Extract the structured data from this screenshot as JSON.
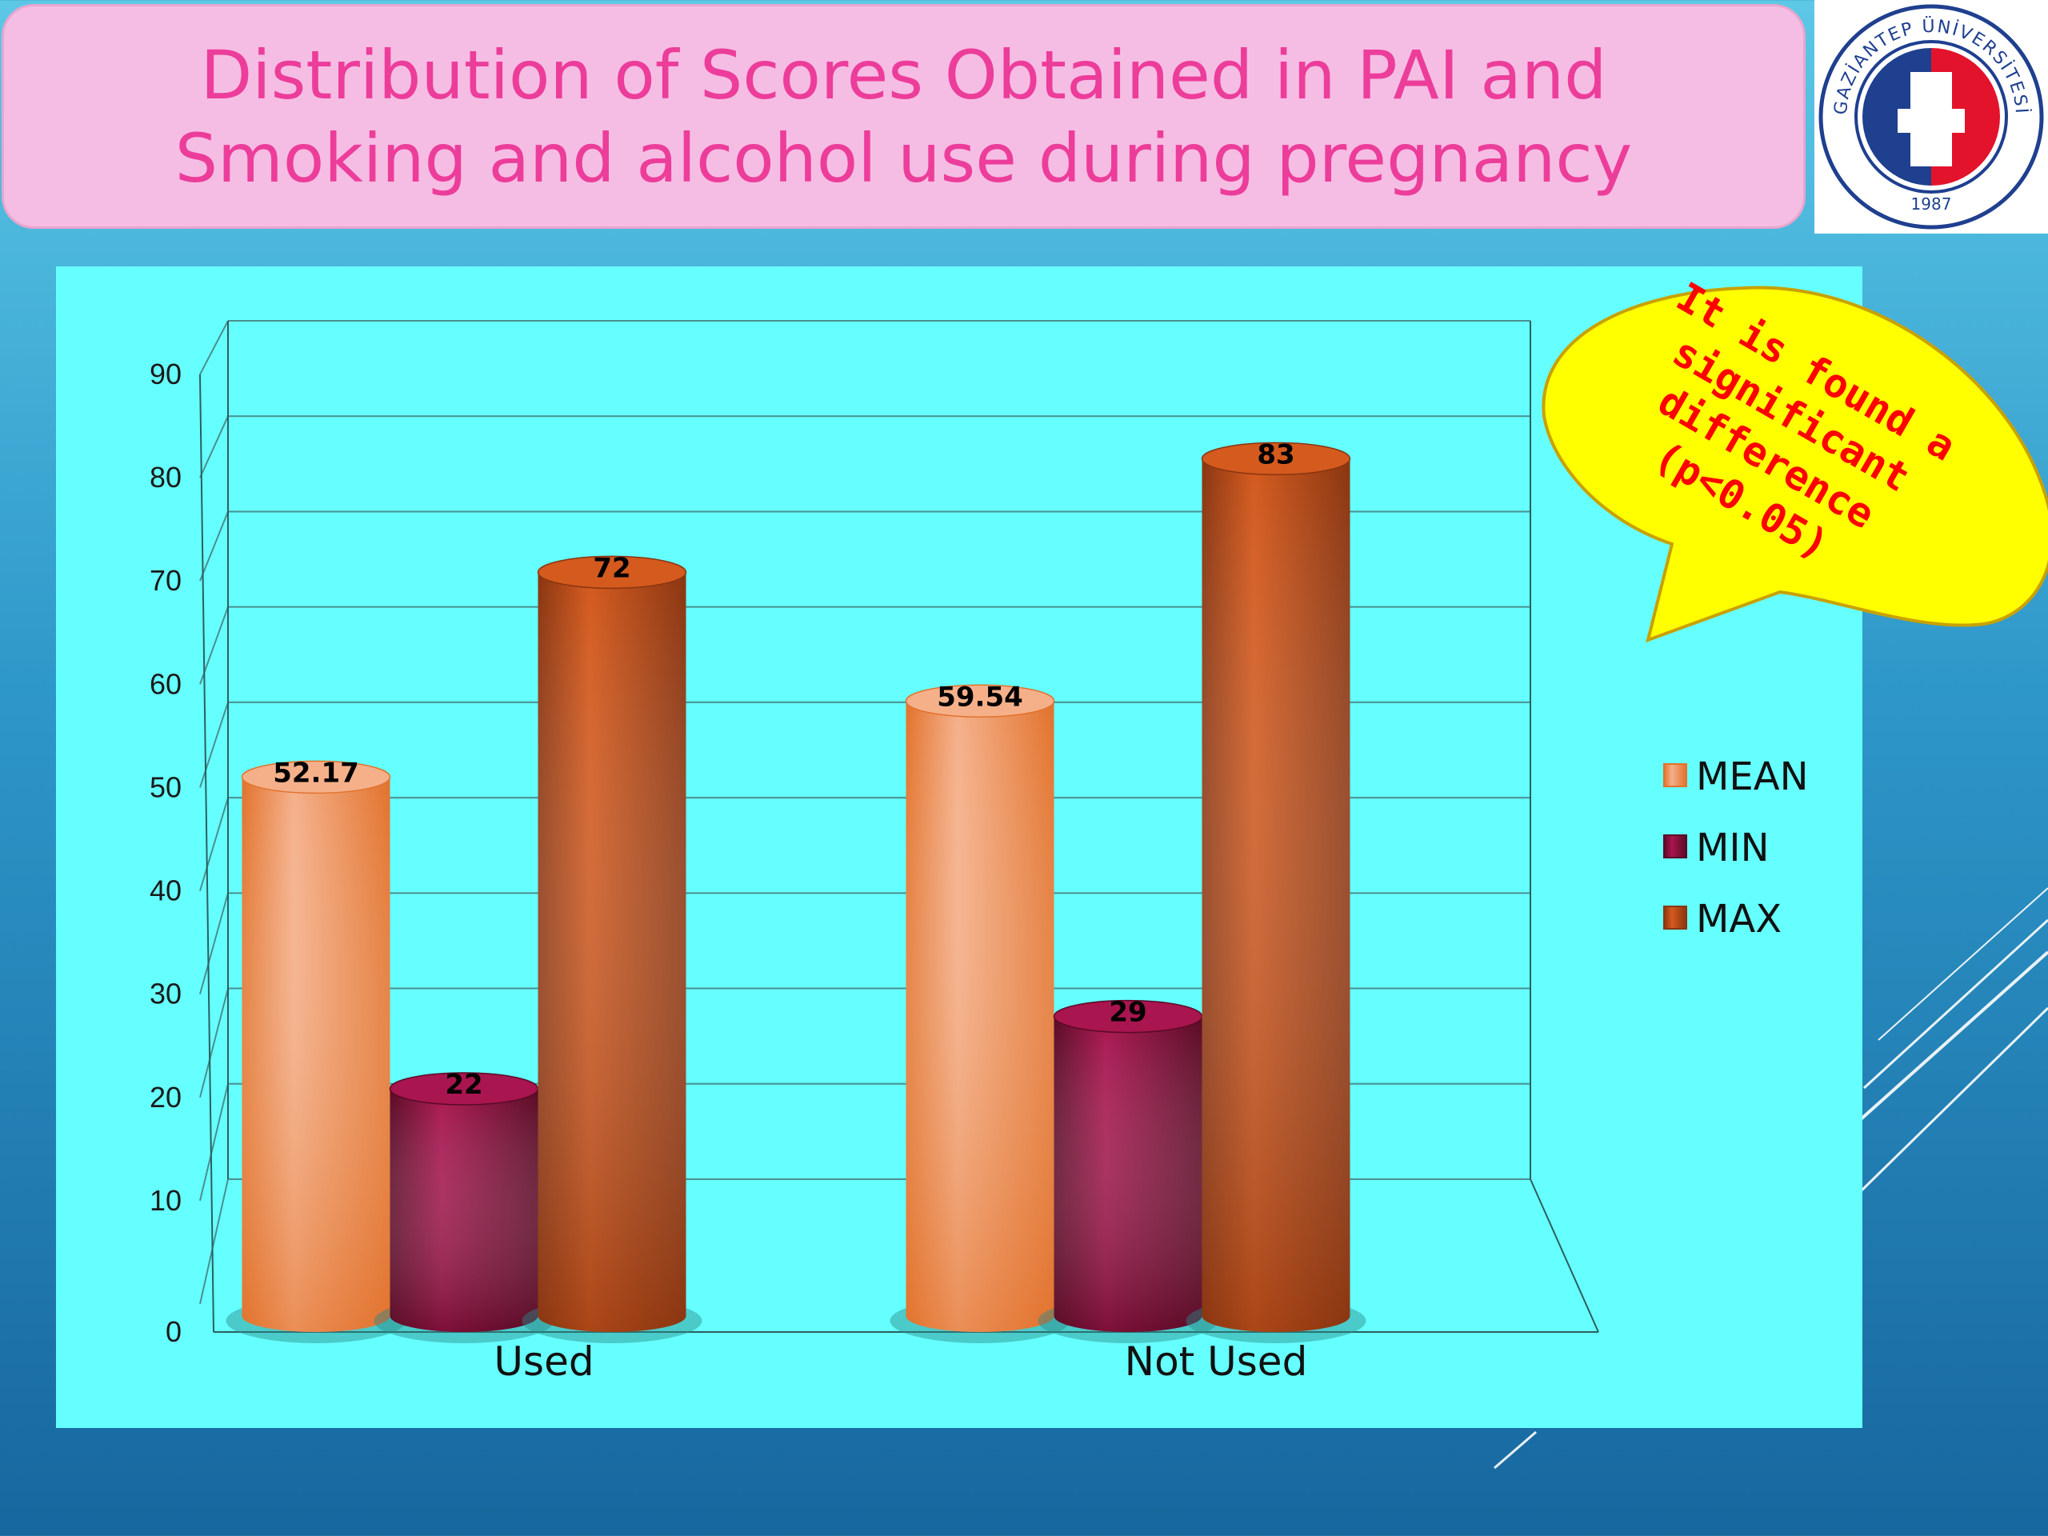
{
  "slide": {
    "title_line1": "Distribution of Scores Obtained in PAI and",
    "title_line2": "Smoking and alcohol use during pregnancy"
  },
  "logo": {
    "ring_text": "GAZİANTEP ÜNİVERSİTESİ",
    "year": "1987"
  },
  "callout": {
    "lines": [
      "It is found a",
      "significant",
      "difference",
      "(p<0.05)"
    ]
  },
  "colors": {
    "title_text": "#ec3d9a",
    "title_bg": "#f6bde4",
    "plot_bg": "#66ffff",
    "mean": "#f5b08a",
    "min": "#a8154f",
    "max": "#d45a1e",
    "callout_fill": "#ffff00",
    "callout_text": "#ff0000"
  },
  "chart_data": {
    "type": "bar",
    "categories": [
      "Used",
      "Not Used"
    ],
    "series": [
      {
        "name": "MEAN",
        "values": [
          52.17,
          59.54
        ],
        "labels": [
          "52.17",
          "59.54"
        ]
      },
      {
        "name": "MIN",
        "values": [
          22,
          29
        ],
        "labels": [
          "22",
          "29"
        ]
      },
      {
        "name": "MAX",
        "values": [
          72,
          83
        ],
        "labels": [
          "72",
          "83"
        ]
      }
    ],
    "ylim": [
      0,
      90
    ],
    "yticks": [
      0,
      10,
      20,
      30,
      40,
      50,
      60,
      70,
      80,
      90
    ],
    "grid": true,
    "legend": "right",
    "style": "3d-cylinder"
  }
}
